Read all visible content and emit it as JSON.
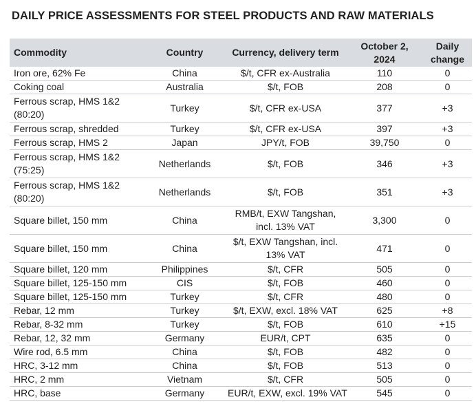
{
  "title": "DAILY PRICE ASSESSMENTS FOR STEEL PRODUCTS AND RAW MATERIALS",
  "headers": {
    "commodity": "Commodity",
    "country": "Country",
    "currency": "Currency, delivery term",
    "date_line1": "October 2,",
    "date_line2": "2024",
    "change_line1": "Daily",
    "change_line2": "change"
  },
  "rows": [
    {
      "commodity": "Iron ore, 62% Fe",
      "country": "China",
      "currency": "$/t, CFR ex-Australia",
      "price": "110",
      "change": "0"
    },
    {
      "commodity": "Coking coal",
      "country": "Australia",
      "currency": "$/t, FOB",
      "price": "208",
      "change": "0"
    },
    {
      "commodity": "Ferrous scrap, HMS 1&2 (80:20)",
      "country": "Turkey",
      "currency": "$/t, CFR ex-USA",
      "price": "377",
      "change": "+3"
    },
    {
      "commodity": "Ferrous scrap, shredded",
      "country": "Turkey",
      "currency": "$/t, CFR ex-USA",
      "price": "397",
      "change": "+3"
    },
    {
      "commodity": "Ferrous scrap, HMS 2",
      "country": "Japan",
      "currency": "JPY/t, FOB",
      "price": "39,750",
      "change": "0"
    },
    {
      "commodity": "Ferrous scrap, HMS 1&2 (75:25)",
      "country": "Netherlands",
      "currency": "$/t, FOB",
      "price": "346",
      "change": "+3"
    },
    {
      "commodity": "Ferrous scrap, HMS 1&2 (80:20)",
      "country": "Netherlands",
      "currency": "$/t, FOB",
      "price": "351",
      "change": "+3"
    },
    {
      "commodity": "Square billet, 150 mm",
      "country": "China",
      "currency": "RMB/t, EXW Tangshan, incl. 13% VAT",
      "price": "3,300",
      "change": "0"
    },
    {
      "commodity": "Square billet, 150 mm",
      "country": "China",
      "currency": "$/t, EXW Tangshan, incl. 13% VAT",
      "price": "471",
      "change": "0"
    },
    {
      "commodity": "Square billet, 120 mm",
      "country": "Philippines",
      "currency": "$/t, CFR",
      "price": "505",
      "change": "0"
    },
    {
      "commodity": "Square billet, 125-150 mm",
      "country": "CIS",
      "currency": "$/t, FOB",
      "price": "460",
      "change": "0"
    },
    {
      "commodity": "Square billet, 125-150 mm",
      "country": "Turkey",
      "currency": "$/t, CFR",
      "price": "480",
      "change": "0"
    },
    {
      "commodity": "Rebar, 12 mm",
      "country": "Turkey",
      "currency": "$/t, EXW, excl. 18% VAT",
      "price": "625",
      "change": "+8"
    },
    {
      "commodity": "Rebar, 8-32 mm",
      "country": "Turkey",
      "currency": "$/t, FOB",
      "price": "610",
      "change": "+15"
    },
    {
      "commodity": "Rebar, 12, 32 mm",
      "country": "Germany",
      "currency": "EUR/t, CPT",
      "price": "635",
      "change": "0"
    },
    {
      "commodity": "Wire rod, 6.5 mm",
      "country": "China",
      "currency": "$/t, FOB",
      "price": "482",
      "change": "0"
    },
    {
      "commodity": "HRC, 3-12 mm",
      "country": "China",
      "currency": "$/t, FOB",
      "price": "513",
      "change": "0"
    },
    {
      "commodity": "HRC, 2 mm",
      "country": "Vietnam",
      "currency": "$/t, CFR",
      "price": "505",
      "change": "0"
    },
    {
      "commodity": "HRC, base",
      "country": "Germany",
      "currency": "EUR/t, EXW, excl. 19% VAT",
      "price": "545",
      "change": "0"
    }
  ]
}
